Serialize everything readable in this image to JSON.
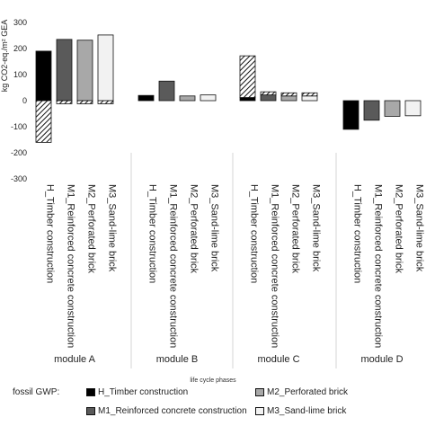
{
  "chart_data": {
    "type": "bar",
    "ylabel": "kg CO2-eq./m² GEA",
    "xlabel": "life cycle phases",
    "ylim": [
      -300,
      300
    ],
    "yticks": [
      300,
      200,
      100,
      0,
      -100,
      -200,
      -300
    ],
    "grid": false,
    "legend_position": "bottom",
    "modules": [
      "module A",
      "module B",
      "module C",
      "module D"
    ],
    "categories": [
      "H_Timber construction",
      "M1_Reinforced concrete construction",
      "M2_Perforated brick",
      "M3_Sand-lime brick"
    ],
    "legend_title": "fossil GWP:",
    "series": [
      {
        "name": "H_Timber construction",
        "color": "#000000"
      },
      {
        "name": "M1_Reinforced concrete construction",
        "color": "#5a5a5a"
      },
      {
        "name": "M2_Perforated brick",
        "color": "#a8a8a8"
      },
      {
        "name": "M3_Sand-lime brick",
        "color": "#f2f2f2"
      }
    ],
    "fossil_values": [
      [
        190,
        235,
        232,
        252
      ],
      [
        20,
        75,
        18,
        22
      ],
      [
        12,
        22,
        18,
        18
      ],
      [
        -110,
        -75,
        -60,
        -58
      ]
    ],
    "biogenic_values": [
      [
        -160,
        -12,
        -12,
        -12
      ],
      [
        0,
        0,
        0,
        0
      ],
      [
        160,
        12,
        12,
        12
      ],
      [
        0,
        0,
        0,
        0
      ]
    ]
  }
}
